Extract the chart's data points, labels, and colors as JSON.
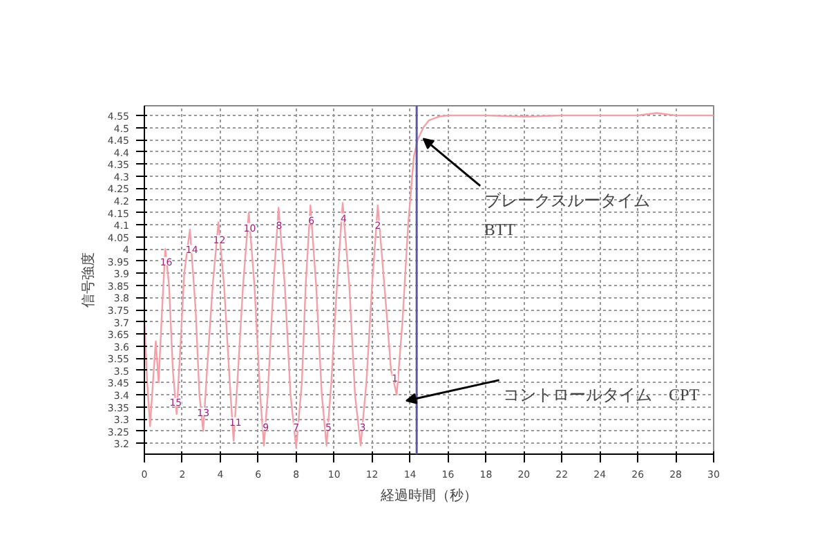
{
  "chart_data": {
    "type": "line",
    "xlabel": "経過時間（秒）",
    "ylabel": "信号強度",
    "series": [
      {
        "color": "#f4a0a8",
        "x": [
          0,
          0.15,
          0.3,
          0.45,
          0.6,
          0.75,
          0.9,
          1.1,
          1.3,
          1.5,
          1.7,
          1.9,
          2.1,
          2.4,
          2.7,
          2.9,
          3.1,
          3.3,
          3.6,
          3.9,
          4.2,
          4.5,
          4.7,
          4.9,
          5.2,
          5.5,
          5.8,
          6.1,
          6.3,
          6.5,
          6.8,
          7.07,
          7.4,
          7.7,
          8.0,
          8.3,
          8.5,
          8.75,
          9.05,
          9.35,
          9.6,
          9.85,
          10.15,
          10.45,
          10.8,
          11.1,
          11.4,
          11.7,
          12.0,
          12.3,
          12.7,
          13.0,
          13.3,
          13.6,
          13.9,
          14.2,
          14.4,
          14.7,
          15,
          15.5,
          16,
          18,
          20,
          22,
          24,
          26,
          27,
          28,
          30
        ],
        "values": [
          3.7,
          3.45,
          3.27,
          3.45,
          3.62,
          3.45,
          3.7,
          4.0,
          3.85,
          3.5,
          3.32,
          3.6,
          3.9,
          4.08,
          3.75,
          3.4,
          3.25,
          3.5,
          3.85,
          4.11,
          3.85,
          3.45,
          3.21,
          3.45,
          3.85,
          4.15,
          3.85,
          3.4,
          3.19,
          3.4,
          3.85,
          4.17,
          3.85,
          3.4,
          3.18,
          3.45,
          3.85,
          4.18,
          3.85,
          3.4,
          3.19,
          3.45,
          3.85,
          4.19,
          3.85,
          3.4,
          3.19,
          3.45,
          3.85,
          4.18,
          3.8,
          3.5,
          3.4,
          3.7,
          4.1,
          4.38,
          4.45,
          4.5,
          4.53,
          4.545,
          4.55,
          4.55,
          4.545,
          4.55,
          4.55,
          4.55,
          4.56,
          4.55,
          4.55
        ]
      }
    ],
    "xlim": [
      0,
      30
    ],
    "ylim": [
      3.155,
      4.59
    ],
    "xticks": [
      0,
      2,
      4,
      6,
      8,
      10,
      12,
      14,
      16,
      18,
      20,
      22,
      24,
      26,
      28,
      30
    ],
    "yticks": [
      3.2,
      3.25,
      3.3,
      3.35,
      3.4,
      3.45,
      3.5,
      3.55,
      3.6,
      3.65,
      3.7,
      3.75,
      3.8,
      3.85,
      3.9,
      3.95,
      4,
      4.05,
      4.1,
      4.15,
      4.2,
      4.25,
      4.3,
      4.35,
      4.4,
      4.45,
      4.5,
      4.55
    ],
    "grid": true,
    "marker": "none",
    "line_style": "solid",
    "ref_lines": [
      {
        "axis": "x",
        "value": 14.35,
        "color": "#5a5aa0"
      }
    ],
    "annotations": [
      {
        "text": "16",
        "x": 1.15,
        "y": 3.95
      },
      {
        "text": "14",
        "x": 2.5,
        "y": 4.0
      },
      {
        "text": "12",
        "x": 3.95,
        "y": 4.04
      },
      {
        "text": "10",
        "x": 5.55,
        "y": 4.09
      },
      {
        "text": "8",
        "x": 7.1,
        "y": 4.1
      },
      {
        "text": "6",
        "x": 8.8,
        "y": 4.12
      },
      {
        "text": "4",
        "x": 10.5,
        "y": 4.13
      },
      {
        "text": "2",
        "x": 12.3,
        "y": 4.1
      },
      {
        "text": "15",
        "x": 1.65,
        "y": 3.37
      },
      {
        "text": "13",
        "x": 3.1,
        "y": 3.33
      },
      {
        "text": "11",
        "x": 4.8,
        "y": 3.29
      },
      {
        "text": "9",
        "x": 6.4,
        "y": 3.27
      },
      {
        "text": "7",
        "x": 8.0,
        "y": 3.27
      },
      {
        "text": "5",
        "x": 9.7,
        "y": 3.27
      },
      {
        "text": "3",
        "x": 11.5,
        "y": 3.27
      },
      {
        "text": "1",
        "x": 13.2,
        "y": 3.47
      },
      {
        "text": "ブレークスルータイム\nBTT",
        "x": 14.5,
        "y": 4.46
      },
      {
        "text": "コントロールタイム　CPT",
        "x": 13.6,
        "y": 3.38
      }
    ]
  }
}
